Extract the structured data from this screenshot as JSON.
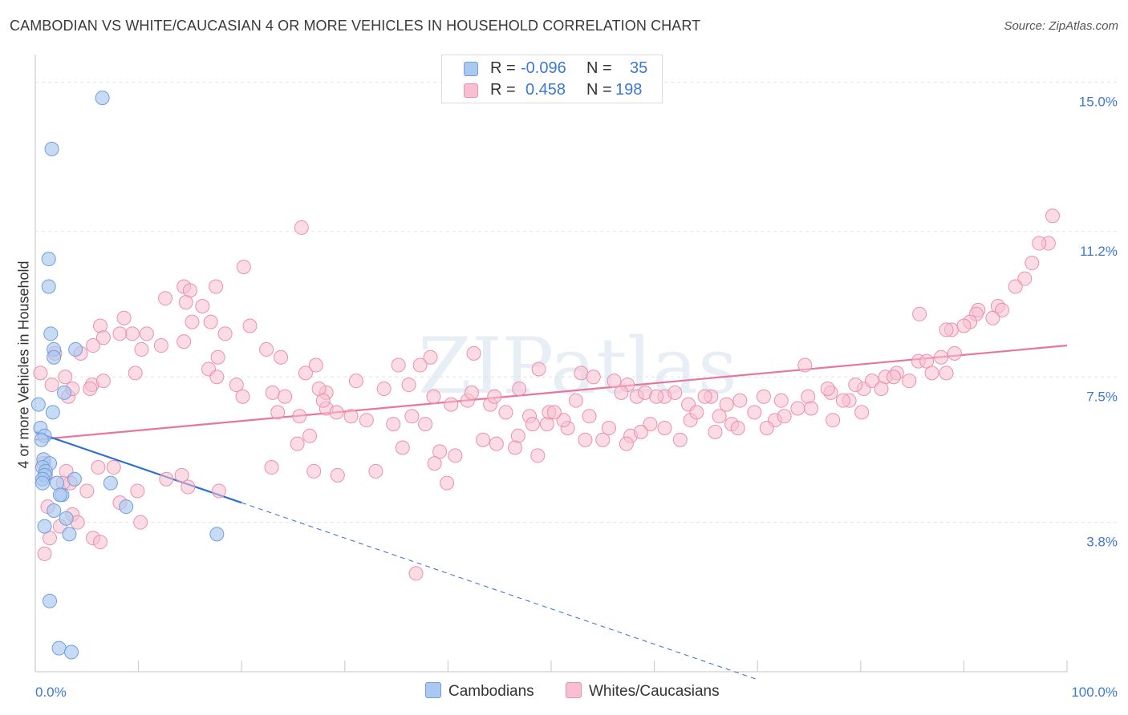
{
  "title": "CAMBODIAN VS WHITE/CAUCASIAN 4 OR MORE VEHICLES IN HOUSEHOLD CORRELATION CHART",
  "source": "Source: ZipAtlas.com",
  "watermark": "ZIPatlas",
  "legend": {
    "series1": {
      "r_label": "R =",
      "r_value": "-0.096",
      "n_label": "N =",
      "n_value": "35"
    },
    "series2": {
      "r_label": "R =",
      "r_value": "0.458",
      "n_label": "N =",
      "n_value": "198"
    }
  },
  "bottom_legend": {
    "series1": "Cambodians",
    "series2": "Whites/Caucasians"
  },
  "colors": {
    "blue_fill": "#aac8f0",
    "blue_stroke": "#6e9fe0",
    "blue_line": "#2e6fd0",
    "pink_fill": "#f7bfd0",
    "pink_stroke": "#ec8fae",
    "pink_line": "#e8769a",
    "tick_label": "#3d78d4",
    "grid": "#e2e2e2"
  },
  "chart_data": {
    "type": "scatter",
    "title": "CAMBODIAN VS WHITE/CAUCASIAN 4 OR MORE VEHICLES IN HOUSEHOLD CORRELATION CHART",
    "xlabel": "",
    "ylabel": "4 or more Vehicles in Household",
    "xlim": [
      0,
      100
    ],
    "ylim": [
      0,
      15.5
    ],
    "x_tick_labels": [
      "0.0%",
      "100.0%"
    ],
    "y_ticks": [
      3.8,
      7.5,
      11.2,
      15.0
    ],
    "y_tick_labels": [
      "3.8%",
      "7.5%",
      "11.2%",
      "15.0%"
    ],
    "series": [
      {
        "name": "Cambodians",
        "r": -0.096,
        "n": 35,
        "trend": {
          "x0": 0,
          "y0": 6.1,
          "x1": 20,
          "y1": 4.3,
          "dash_to_x": 70,
          "dash_to_y": -0.2
        },
        "points": [
          [
            6.5,
            14.6
          ],
          [
            1.6,
            13.3
          ],
          [
            1.3,
            10.5
          ],
          [
            1.3,
            9.8
          ],
          [
            1.5,
            8.6
          ],
          [
            3.9,
            8.2
          ],
          [
            1.8,
            8.2
          ],
          [
            1.8,
            8.0
          ],
          [
            2.8,
            7.1
          ],
          [
            0.3,
            6.8
          ],
          [
            1.7,
            6.6
          ],
          [
            0.5,
            6.2
          ],
          [
            0.9,
            6.0
          ],
          [
            0.6,
            5.9
          ],
          [
            0.8,
            5.4
          ],
          [
            1.4,
            5.3
          ],
          [
            0.7,
            5.2
          ],
          [
            1.0,
            5.1
          ],
          [
            0.9,
            5.0
          ],
          [
            0.7,
            4.9
          ],
          [
            3.8,
            4.9
          ],
          [
            7.3,
            4.8
          ],
          [
            2.1,
            4.8
          ],
          [
            0.7,
            4.8
          ],
          [
            2.6,
            4.5
          ],
          [
            2.4,
            4.5
          ],
          [
            8.8,
            4.2
          ],
          [
            1.8,
            4.1
          ],
          [
            3.0,
            3.9
          ],
          [
            0.9,
            3.7
          ],
          [
            17.6,
            3.5
          ],
          [
            3.3,
            3.5
          ],
          [
            1.4,
            1.8
          ],
          [
            2.3,
            0.6
          ],
          [
            3.5,
            0.5
          ]
        ]
      },
      {
        "name": "Whites/Caucasians",
        "r": 0.458,
        "n": 198,
        "trend": {
          "x0": 0,
          "y0": 5.9,
          "x1": 100,
          "y1": 8.3
        },
        "points": [
          [
            25.8,
            11.3
          ],
          [
            98.6,
            11.6
          ],
          [
            98.2,
            10.9
          ],
          [
            97.3,
            10.9
          ],
          [
            96.6,
            10.4
          ],
          [
            20.2,
            10.3
          ],
          [
            95.9,
            10.0
          ],
          [
            95.0,
            9.8
          ],
          [
            17.5,
            9.8
          ],
          [
            14.4,
            9.8
          ],
          [
            15.0,
            9.7
          ],
          [
            12.6,
            9.5
          ],
          [
            14.6,
            9.4
          ],
          [
            16.2,
            9.3
          ],
          [
            85.7,
            9.1
          ],
          [
            93.3,
            9.3
          ],
          [
            93.7,
            9.2
          ],
          [
            91.4,
            9.2
          ],
          [
            92.8,
            9.0
          ],
          [
            91.2,
            9.1
          ],
          [
            90.6,
            8.9
          ],
          [
            88.8,
            8.7
          ],
          [
            88.3,
            8.7
          ],
          [
            90.0,
            8.8
          ],
          [
            17.0,
            8.9
          ],
          [
            10.8,
            8.6
          ],
          [
            6.3,
            8.8
          ],
          [
            9.4,
            8.6
          ],
          [
            8.6,
            9.0
          ],
          [
            8.2,
            8.6
          ],
          [
            6.6,
            8.5
          ],
          [
            5.6,
            8.3
          ],
          [
            4.4,
            8.1
          ],
          [
            17.7,
            8.0
          ],
          [
            10.3,
            8.2
          ],
          [
            14.4,
            8.4
          ],
          [
            18.4,
            8.6
          ],
          [
            12.2,
            8.3
          ],
          [
            15.2,
            8.9
          ],
          [
            20.8,
            8.8
          ],
          [
            22.4,
            8.2
          ],
          [
            1.9,
            8.1
          ],
          [
            23.8,
            8.0
          ],
          [
            26.2,
            7.6
          ],
          [
            28.2,
            7.1
          ],
          [
            16.8,
            7.7
          ],
          [
            17.6,
            7.5
          ],
          [
            19.5,
            7.3
          ],
          [
            9.7,
            7.6
          ],
          [
            5.5,
            7.3
          ],
          [
            3.2,
            7.0
          ],
          [
            2.9,
            7.5
          ],
          [
            0.5,
            7.6
          ],
          [
            3.6,
            7.2
          ],
          [
            1.6,
            7.3
          ],
          [
            5.3,
            7.2
          ],
          [
            6.6,
            7.4
          ],
          [
            27.5,
            7.2
          ],
          [
            27.2,
            7.8
          ],
          [
            23.0,
            7.1
          ],
          [
            20.1,
            7.0
          ],
          [
            24.2,
            7.0
          ],
          [
            25.6,
            6.5
          ],
          [
            23.5,
            6.6
          ],
          [
            28.2,
            6.7
          ],
          [
            35.2,
            7.8
          ],
          [
            37.3,
            7.8
          ],
          [
            38.3,
            8.0
          ],
          [
            42.5,
            8.1
          ],
          [
            48.8,
            7.7
          ],
          [
            52.9,
            7.6
          ],
          [
            54.1,
            7.5
          ],
          [
            56.1,
            7.4
          ],
          [
            57.4,
            7.3
          ],
          [
            58.3,
            7.0
          ],
          [
            59.1,
            7.1
          ],
          [
            61.0,
            7.0
          ],
          [
            63.3,
            6.8
          ],
          [
            65.5,
            7.0
          ],
          [
            68.3,
            6.9
          ],
          [
            70.6,
            7.0
          ],
          [
            72.3,
            6.9
          ],
          [
            74.9,
            7.0
          ],
          [
            77.1,
            7.1
          ],
          [
            80.3,
            7.2
          ],
          [
            81.1,
            7.4
          ],
          [
            82.4,
            7.5
          ],
          [
            83.5,
            7.6
          ],
          [
            85.6,
            7.9
          ],
          [
            86.4,
            7.9
          ],
          [
            87.8,
            8.0
          ],
          [
            89.1,
            8.1
          ],
          [
            74.6,
            7.8
          ],
          [
            76.8,
            7.2
          ],
          [
            78.9,
            6.9
          ],
          [
            80.1,
            6.6
          ],
          [
            84.7,
            7.4
          ],
          [
            86.9,
            7.6
          ],
          [
            88.3,
            7.6
          ],
          [
            83.2,
            7.5
          ],
          [
            82.0,
            7.2
          ],
          [
            79.5,
            7.3
          ],
          [
            73.9,
            6.7
          ],
          [
            71.7,
            6.4
          ],
          [
            69.7,
            6.6
          ],
          [
            67.5,
            6.3
          ],
          [
            65.9,
            6.1
          ],
          [
            63.5,
            6.4
          ],
          [
            61.0,
            6.2
          ],
          [
            59.6,
            6.3
          ],
          [
            57.7,
            6.0
          ],
          [
            55.6,
            6.2
          ],
          [
            53.3,
            5.9
          ],
          [
            51.6,
            6.2
          ],
          [
            49.6,
            6.3
          ],
          [
            47.9,
            6.5
          ],
          [
            46.8,
            6.0
          ],
          [
            45.6,
            6.6
          ],
          [
            44.1,
            6.8
          ],
          [
            41.9,
            6.9
          ],
          [
            40.3,
            6.8
          ],
          [
            38.6,
            7.0
          ],
          [
            36.5,
            6.5
          ],
          [
            34.7,
            6.3
          ],
          [
            32.1,
            6.4
          ],
          [
            30.6,
            6.5
          ],
          [
            29.2,
            6.6
          ],
          [
            27.9,
            6.9
          ],
          [
            26.6,
            6.0
          ],
          [
            25.4,
            5.8
          ],
          [
            27.0,
            5.1
          ],
          [
            22.9,
            5.2
          ],
          [
            14.2,
            5.0
          ],
          [
            12.7,
            4.9
          ],
          [
            9.9,
            4.6
          ],
          [
            7.6,
            5.2
          ],
          [
            6.1,
            5.2
          ],
          [
            3.0,
            5.1
          ],
          [
            1.0,
            5.0
          ],
          [
            0.8,
            5.3
          ],
          [
            3.4,
            4.8
          ],
          [
            8.2,
            4.3
          ],
          [
            10.2,
            3.8
          ],
          [
            14.8,
            4.7
          ],
          [
            17.8,
            4.6
          ],
          [
            5.0,
            4.6
          ],
          [
            2.7,
            4.8
          ],
          [
            1.2,
            4.2
          ],
          [
            3.6,
            4.0
          ],
          [
            2.4,
            3.7
          ],
          [
            1.4,
            3.4
          ],
          [
            0.9,
            3.0
          ],
          [
            4.1,
            3.8
          ],
          [
            5.6,
            3.4
          ],
          [
            6.3,
            3.3
          ],
          [
            36.9,
            2.5
          ],
          [
            39.9,
            4.8
          ],
          [
            38.7,
            5.3
          ],
          [
            39.2,
            5.6
          ],
          [
            40.7,
            5.5
          ],
          [
            43.4,
            5.9
          ],
          [
            44.7,
            5.8
          ],
          [
            46.5,
            5.7
          ],
          [
            48.7,
            5.5
          ],
          [
            49.8,
            6.6
          ],
          [
            51.2,
            6.4
          ],
          [
            55.0,
            5.9
          ],
          [
            57.3,
            5.8
          ],
          [
            58.7,
            6.1
          ],
          [
            62.5,
            5.9
          ],
          [
            64.1,
            6.6
          ],
          [
            66.3,
            6.5
          ],
          [
            68.1,
            6.2
          ],
          [
            70.9,
            6.2
          ],
          [
            72.6,
            6.5
          ],
          [
            75.2,
            6.7
          ],
          [
            77.3,
            6.4
          ],
          [
            78.3,
            6.9
          ],
          [
            29.3,
            5.0
          ],
          [
            33.0,
            5.1
          ],
          [
            35.6,
            5.7
          ],
          [
            37.8,
            6.3
          ],
          [
            31.1,
            7.4
          ],
          [
            33.8,
            7.2
          ],
          [
            36.2,
            7.3
          ],
          [
            42.3,
            7.1
          ],
          [
            44.5,
            7.0
          ],
          [
            46.9,
            7.2
          ],
          [
            48.2,
            6.3
          ],
          [
            50.3,
            6.6
          ],
          [
            52.4,
            6.9
          ],
          [
            53.7,
            6.5
          ],
          [
            56.8,
            7.1
          ],
          [
            60.2,
            7.0
          ],
          [
            62.0,
            7.1
          ],
          [
            64.9,
            7.0
          ],
          [
            67.0,
            6.8
          ]
        ]
      }
    ]
  }
}
